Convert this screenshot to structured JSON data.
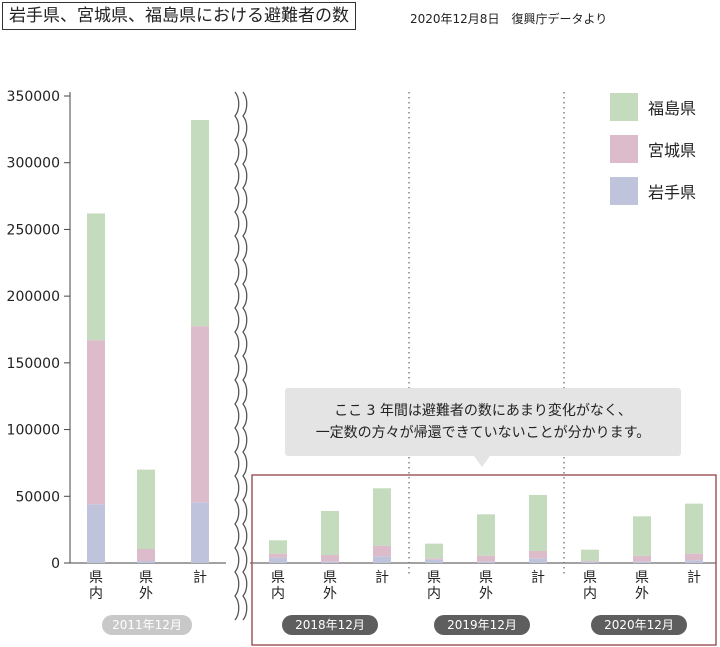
{
  "header": {
    "title": "岩手県、宮城県、福島県における避難者の数",
    "subtitle": "2020年12月8日　復興庁データより"
  },
  "callout": {
    "line1": "ここ 3 年間は避難者の数にあまり変化がなく、",
    "line2": "一定数の方々が帰還できていないことが分かります。"
  },
  "colors": {
    "iwate": "#bfc3dc",
    "miyagi": "#dcbccb",
    "fukushima": "#c4dcbd"
  },
  "chart_data": {
    "type": "bar",
    "stacked": true,
    "ylim": [
      0,
      350000
    ],
    "yticks": [
      0,
      50000,
      100000,
      150000,
      200000,
      250000,
      300000,
      350000
    ],
    "ytick_labels": [
      "0",
      "50000",
      "100000",
      "150000",
      "200000",
      "250000",
      "300000",
      "350000"
    ],
    "grid": false,
    "legend": "top-right",
    "legend_entries": [
      "福島県",
      "宮城県",
      "岩手県"
    ],
    "series_order": [
      "iwate",
      "miyagi",
      "fukushima"
    ],
    "series_names": {
      "iwate": "岩手県",
      "miyagi": "宮城県",
      "fukushima": "福島県"
    },
    "periods": [
      {
        "label": "2011年12月",
        "categories": [
          "県\n内",
          "県\n外",
          "計"
        ],
        "iwate": [
          44000,
          1500,
          45500
        ],
        "miyagi": [
          123000,
          9000,
          132000
        ],
        "fukushima": [
          95000,
          59500,
          154500
        ]
      },
      {
        "label": "2018年12月",
        "categories": [
          "県\n内",
          "県\n外",
          "計"
        ],
        "iwate": [
          4000,
          1000,
          5000
        ],
        "miyagi": [
          3000,
          5000,
          8000
        ],
        "fukushima": [
          10000,
          33000,
          43000
        ]
      },
      {
        "label": "2019年12月",
        "categories": [
          "県\n内",
          "県\n外",
          "計"
        ],
        "iwate": [
          2500,
          1000,
          3500
        ],
        "miyagi": [
          1000,
          4500,
          5500
        ],
        "fukushima": [
          11000,
          31000,
          42000
        ]
      },
      {
        "label": "2020年12月",
        "categories": [
          "県\n内",
          "県\n外",
          "計"
        ],
        "iwate": [
          1000,
          1000,
          2000
        ],
        "miyagi": [
          500,
          4500,
          5000
        ],
        "fukushima": [
          8500,
          29500,
          37500
        ]
      }
    ]
  }
}
